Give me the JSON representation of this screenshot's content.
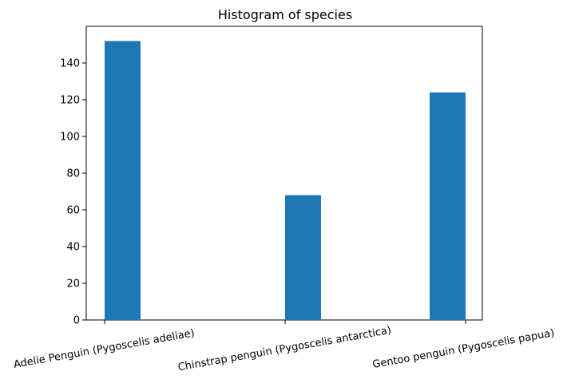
{
  "chart_data": {
    "type": "bar",
    "title": "Histogram of species",
    "xlabel": "",
    "ylabel": "",
    "categories": [
      "Adelie Penguin (Pygoscelis adeliae)",
      "Chinstrap penguin (Pygoscelis antarctica)",
      "Gentoo penguin (Pygoscelis papua)"
    ],
    "values": [
      152,
      68,
      124
    ],
    "ylim": [
      0,
      160
    ],
    "yticks": [
      0,
      20,
      40,
      60,
      80,
      100,
      120,
      140
    ],
    "grid": false,
    "legend": "none",
    "bar_color": "#1f77b4"
  }
}
